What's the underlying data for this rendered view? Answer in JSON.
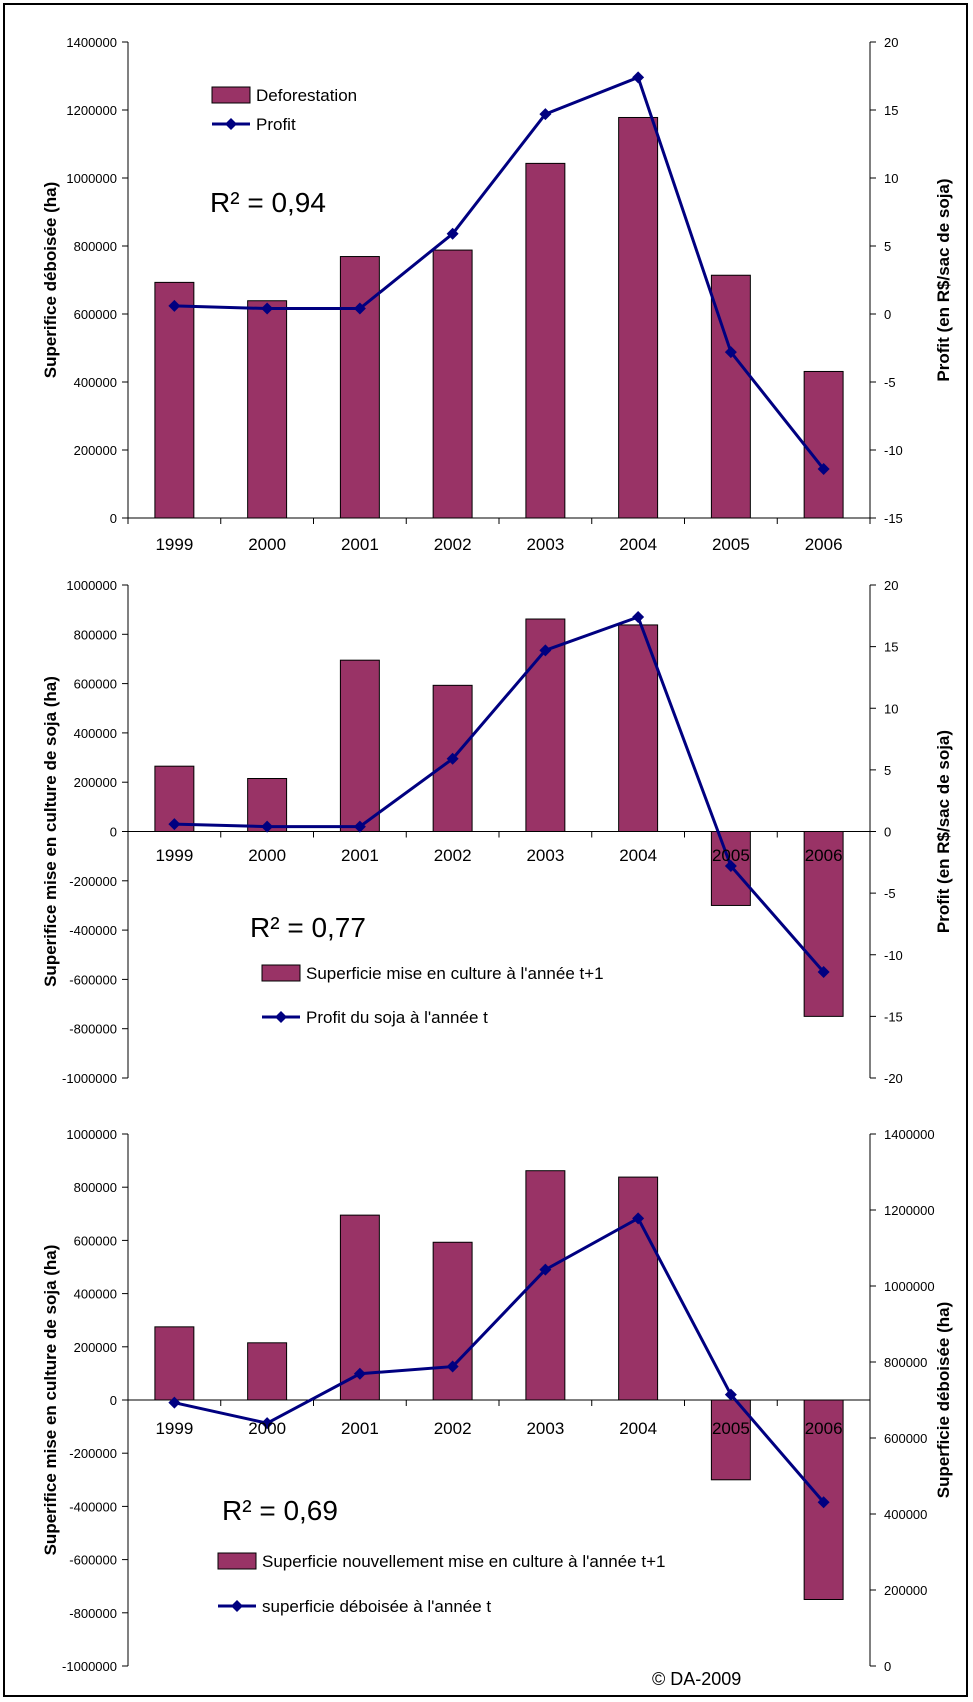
{
  "colors": {
    "bar": "#993366",
    "line": "#000080",
    "axis": "#000000"
  },
  "credit": "© DA-2009",
  "chart_data": [
    {
      "type": "bar",
      "categories": [
        "1999",
        "2000",
        "2001",
        "2002",
        "2003",
        "2004",
        "2005",
        "2006"
      ],
      "series": [
        {
          "name": "Deforestation",
          "kind": "bar",
          "axis": "left",
          "values": [
            693000,
            639000,
            769000,
            788000,
            1043000,
            1178000,
            714000,
            431000
          ]
        },
        {
          "name": "Profit",
          "kind": "line",
          "axis": "right",
          "values": [
            0.6,
            0.4,
            0.4,
            5.9,
            14.7,
            17.4,
            -2.8,
            -11.4
          ]
        }
      ],
      "ylabel": "Superifice déboisée (ha)",
      "ylabel_right": "Profit (en R$/sac de soja)",
      "ylim": [
        0,
        1400000
      ],
      "ylim_right": [
        -15,
        20
      ],
      "yticks": [
        "0",
        "200000",
        "400000",
        "600000",
        "800000",
        "1000000",
        "1200000",
        "1400000"
      ],
      "yticks_right": [
        "-15",
        "-10",
        "-5",
        "0",
        "5",
        "10",
        "15",
        "20"
      ],
      "annotation": "R² = 0,94",
      "legend": "top-left"
    },
    {
      "type": "bar",
      "categories": [
        "1999",
        "2000",
        "2001",
        "2002",
        "2003",
        "2004",
        "2005",
        "2006"
      ],
      "series": [
        {
          "name": "Superficie mise en culture à l'année t+1",
          "kind": "bar",
          "axis": "left",
          "values": [
            265000,
            215000,
            695000,
            593000,
            862000,
            838000,
            -300000,
            -750000
          ]
        },
        {
          "name": "Profit du soja à l'année t",
          "kind": "line",
          "axis": "right",
          "values": [
            0.6,
            0.4,
            0.4,
            5.9,
            14.7,
            17.4,
            -2.8,
            -11.4
          ]
        }
      ],
      "ylabel": "Superifice mise en culture de soja (ha)",
      "ylabel_right": "Profit (en R$/sac de soja)",
      "ylim": [
        -1000000,
        1000000
      ],
      "ylim_right": [
        -20,
        20
      ],
      "yticks": [
        "-1000000",
        "-800000",
        "-600000",
        "-400000",
        "-200000",
        "0",
        "200000",
        "400000",
        "600000",
        "800000",
        "1000000"
      ],
      "yticks_right": [
        "-20",
        "-15",
        "-10",
        "-5",
        "0",
        "5",
        "10",
        "15",
        "20"
      ],
      "annotation": "R² = 0,77",
      "legend": "bottom-left"
    },
    {
      "type": "bar",
      "categories": [
        "1999",
        "2000",
        "2001",
        "2002",
        "2003",
        "2004",
        "2005",
        "2006"
      ],
      "series": [
        {
          "name": "Superficie nouvellement mise en culture à l'année t+1",
          "kind": "bar",
          "axis": "left",
          "values": [
            275000,
            215000,
            695000,
            593000,
            862000,
            838000,
            -300000,
            -750000
          ]
        },
        {
          "name": "superficie déboisée à l'année t",
          "kind": "line",
          "axis": "right",
          "values": [
            693000,
            639000,
            769000,
            788000,
            1043000,
            1178000,
            714000,
            431000
          ]
        }
      ],
      "ylabel": "Superifice mise en culture de soja (ha)",
      "ylabel_right": "Superficie déboisée (ha)",
      "ylim": [
        -1000000,
        1000000
      ],
      "ylim_right": [
        0,
        1400000
      ],
      "yticks": [
        "-1000000",
        "-800000",
        "-600000",
        "-400000",
        "-200000",
        "0",
        "200000",
        "400000",
        "600000",
        "800000",
        "1000000"
      ],
      "yticks_right": [
        "0",
        "200000",
        "400000",
        "600000",
        "800000",
        "1000000",
        "1200000",
        "1400000"
      ],
      "annotation": "R² = 0,69",
      "legend": "bottom-left"
    }
  ]
}
